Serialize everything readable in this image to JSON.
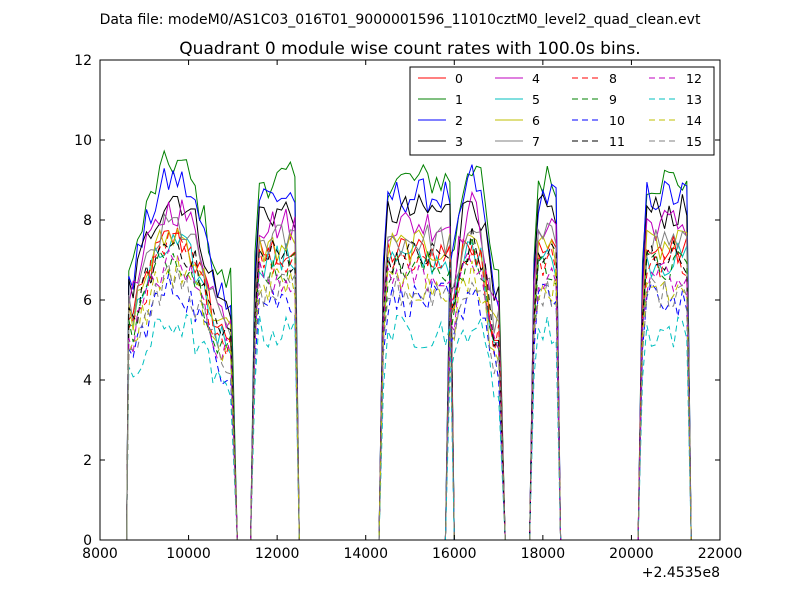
{
  "figure": {
    "suptitle": "Data file: modeM0/AS1C03_016T01_9000001596_11010cztM0_level2_quad_clean.evt",
    "title": "Quadrant 0 module wise count rates with 100.0s bins.",
    "x_offset_label": "+2.4535e8"
  },
  "chart_data": {
    "type": "line",
    "title": "Quadrant 0 module wise count rates with 100.0s bins.",
    "xlabel": "",
    "ylabel": "",
    "xlim": [
      8000,
      22000
    ],
    "ylim": [
      0,
      12
    ],
    "x_ticks": [
      8000,
      10000,
      12000,
      14000,
      16000,
      18000,
      20000,
      22000
    ],
    "y_ticks": [
      0,
      2,
      4,
      6,
      8,
      10,
      12
    ],
    "x_tick_labels": [
      "8000",
      "10000",
      "12000",
      "14000",
      "16000",
      "18000",
      "20000",
      "22000"
    ],
    "y_tick_labels": [
      "0",
      "2",
      "4",
      "6",
      "8",
      "10",
      "12"
    ],
    "x_offset": "+2.4535e8",
    "grid": false,
    "legend_position": "top-right",
    "legend_columns": 4,
    "series": [
      {
        "name": "0",
        "color": "#ff0000",
        "style": "solid",
        "level": 7.2
      },
      {
        "name": "1",
        "color": "#008000",
        "style": "solid",
        "level": 9.0
      },
      {
        "name": "2",
        "color": "#0000ff",
        "style": "solid",
        "level": 8.6
      },
      {
        "name": "3",
        "color": "#000000",
        "style": "solid",
        "level": 8.2
      },
      {
        "name": "4",
        "color": "#bf00bf",
        "style": "solid",
        "level": 7.9
      },
      {
        "name": "5",
        "color": "#00bfbf",
        "style": "solid",
        "level": 7.0
      },
      {
        "name": "6",
        "color": "#bfbf00",
        "style": "solid",
        "level": 7.3
      },
      {
        "name": "7",
        "color": "#808080",
        "style": "solid",
        "level": 7.5
      },
      {
        "name": "8",
        "color": "#ff0000",
        "style": "dashed",
        "level": 7.0
      },
      {
        "name": "9",
        "color": "#008000",
        "style": "dashed",
        "level": 6.8
      },
      {
        "name": "10",
        "color": "#0000ff",
        "style": "dashed",
        "level": 6.0
      },
      {
        "name": "11",
        "color": "#000000",
        "style": "dashed",
        "level": 7.1
      },
      {
        "name": "12",
        "color": "#bf00bf",
        "style": "dashed",
        "level": 6.6
      },
      {
        "name": "13",
        "color": "#00bfbf",
        "style": "dashed",
        "level": 5.2
      },
      {
        "name": "14",
        "color": "#bfbf00",
        "style": "dashed",
        "level": 6.4
      },
      {
        "name": "15",
        "color": "#808080",
        "style": "dashed",
        "level": 6.2
      }
    ],
    "gti_segments": [
      {
        "start": 8650,
        "end": 11000,
        "shape": "hump"
      },
      {
        "start": 11500,
        "end": 12400,
        "shape": "flat"
      },
      {
        "start": 14400,
        "end": 15900,
        "shape": "flat"
      },
      {
        "start": 15900,
        "end": 17050,
        "shape": "hump"
      },
      {
        "start": 17800,
        "end": 18300,
        "shape": "flat"
      },
      {
        "start": 20250,
        "end": 21250,
        "shape": "flat"
      }
    ]
  }
}
